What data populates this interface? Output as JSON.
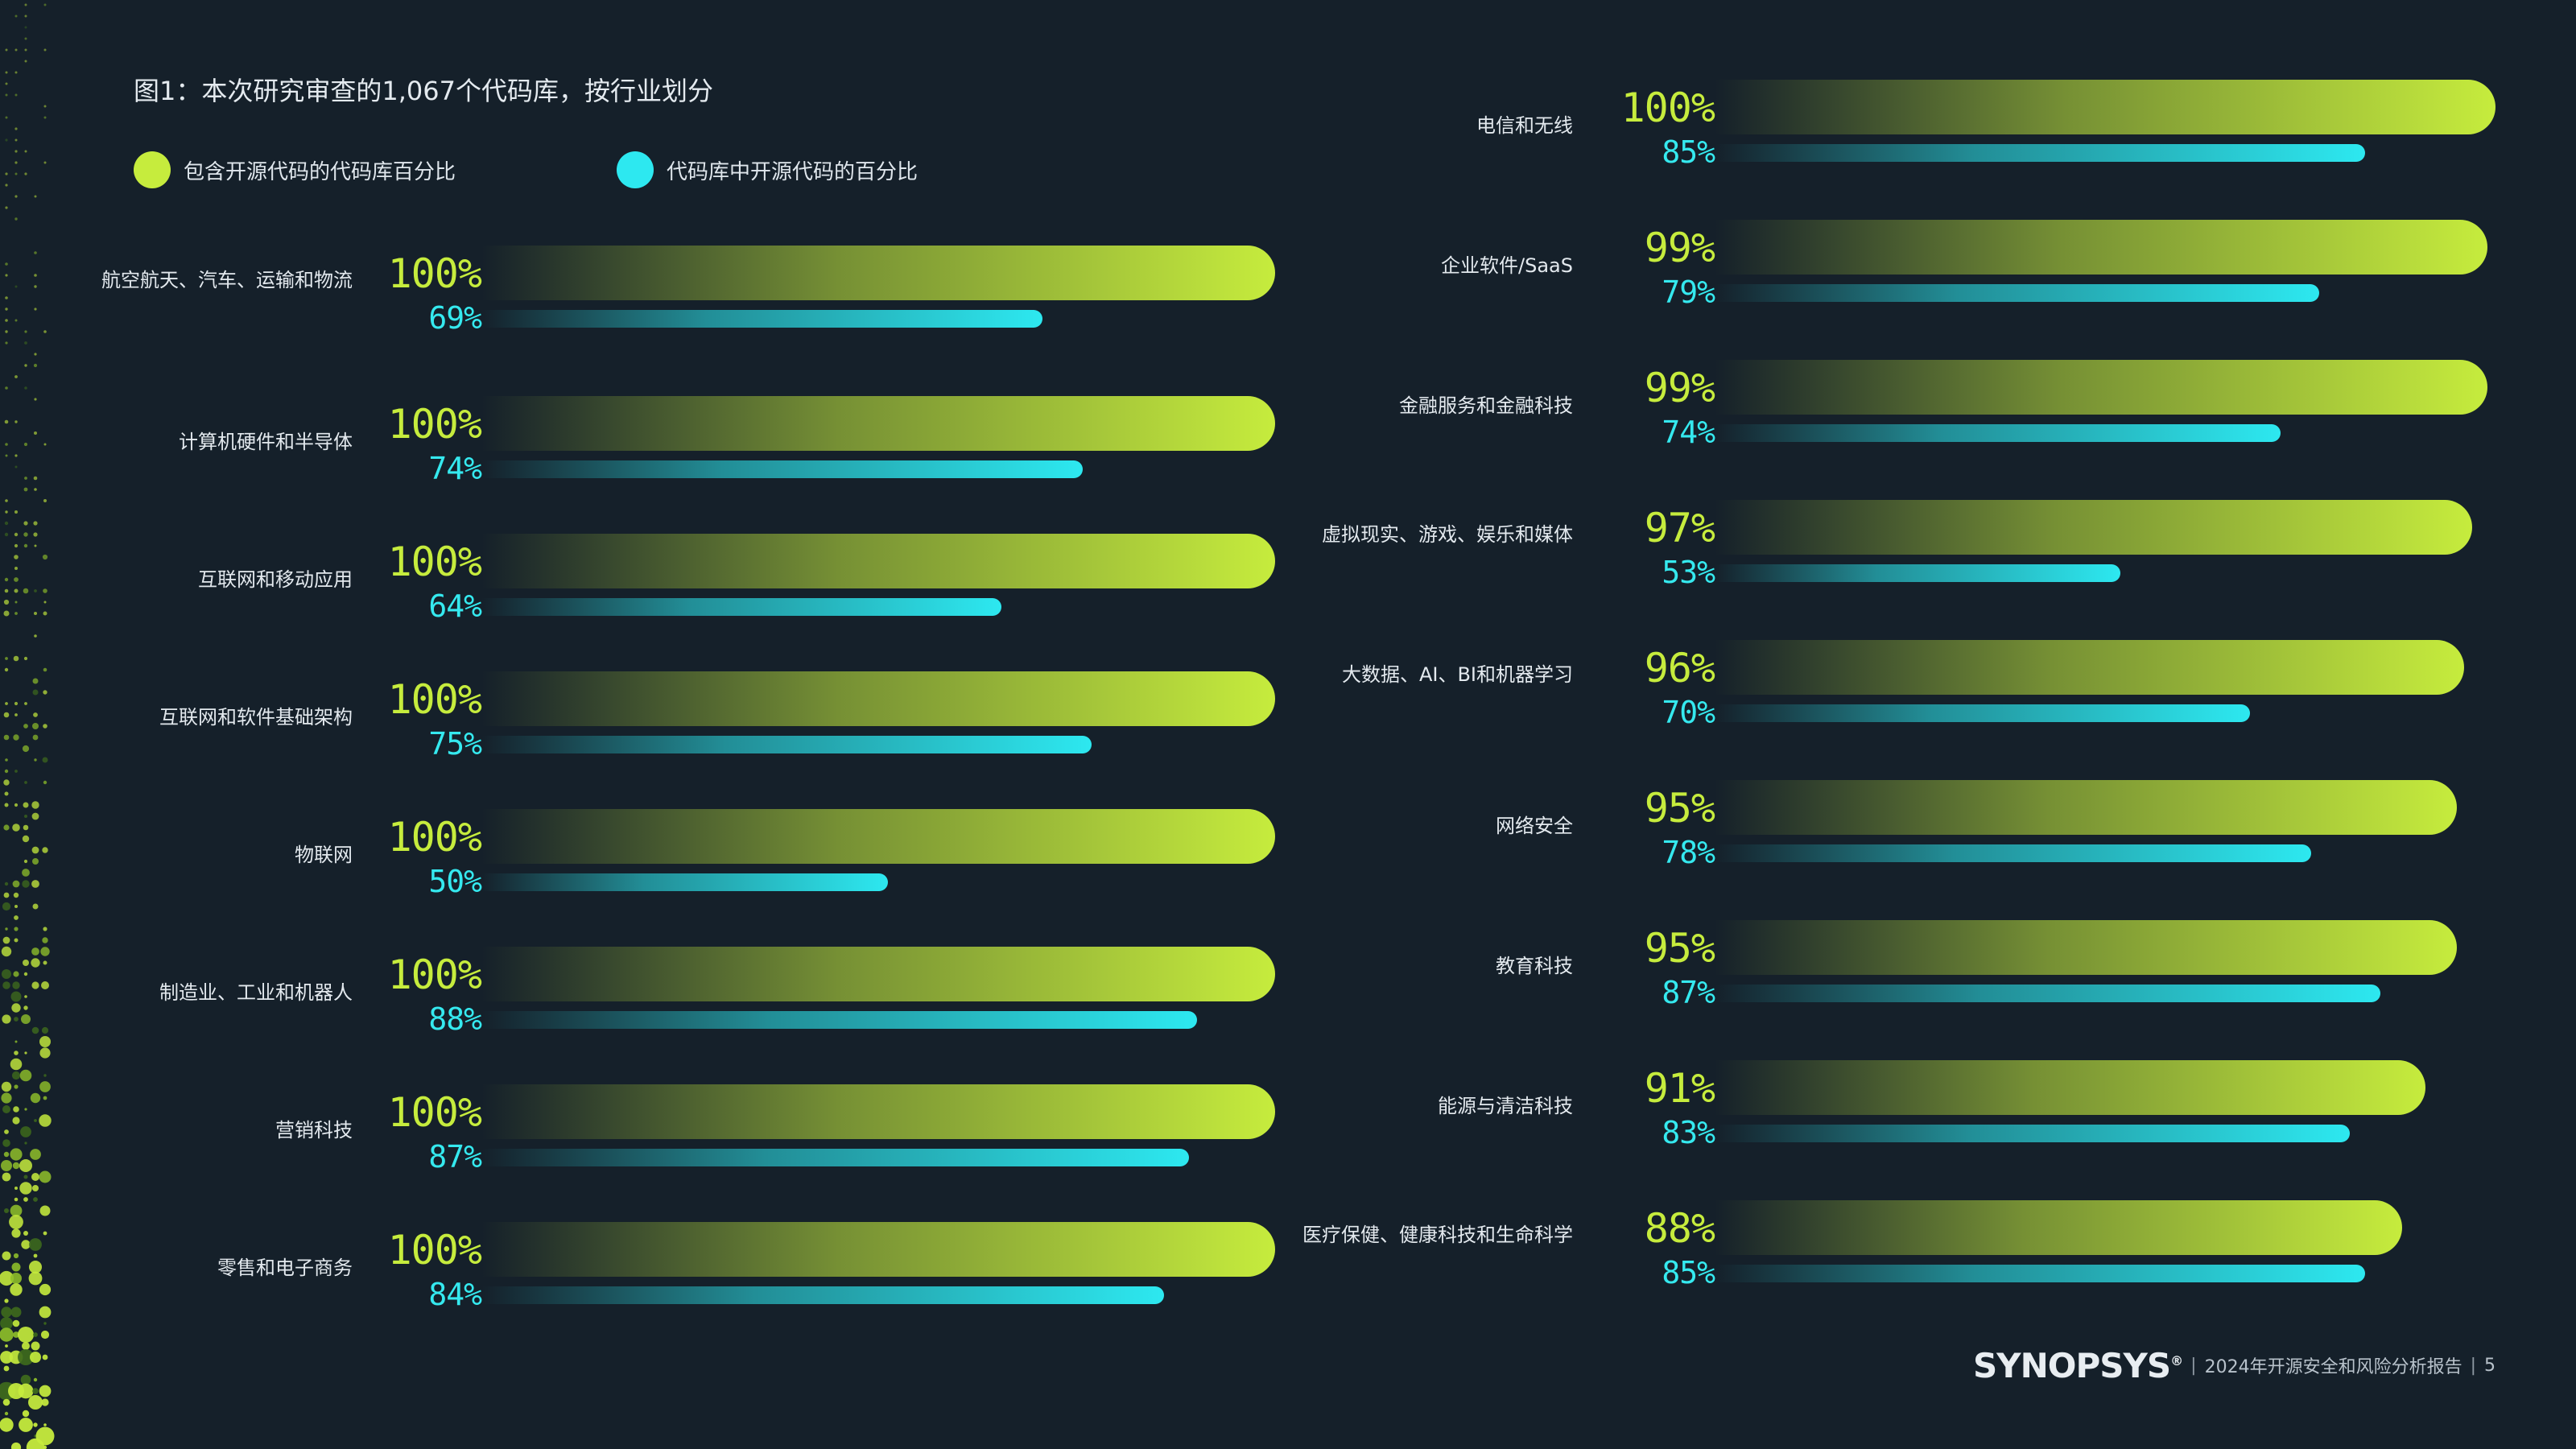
{
  "title": "图1：本次研究审查的1,067个代码库，按行业划分",
  "legend": [
    {
      "label": "包含开源代码的代码库百分比",
      "color": "#c6ec3d"
    },
    {
      "label": "代码库中开源代码的百分比",
      "color": "#2de8f0"
    }
  ],
  "colors": {
    "lime": "#c6ec3d",
    "cyan": "#2de8f0",
    "background": "#15202a"
  },
  "chart_data": {
    "type": "bar",
    "orientation": "horizontal",
    "series": [
      {
        "name": "包含开源代码的代码库百分比",
        "color": "#c6ec3d"
      },
      {
        "name": "代码库中开源代码的百分比",
        "color": "#2de8f0"
      }
    ],
    "value_unit": "%",
    "ylim": [
      0,
      100
    ],
    "left_column": [
      {
        "category": "航空航天、汽车、运输和物流",
        "values": [
          100,
          69
        ],
        "labels": [
          "100%",
          "69%"
        ]
      },
      {
        "category": "计算机硬件和半导体",
        "values": [
          100,
          74
        ],
        "labels": [
          "100%",
          "74%"
        ]
      },
      {
        "category": "互联网和移动应用",
        "values": [
          100,
          64
        ],
        "labels": [
          "100%",
          "64%"
        ]
      },
      {
        "category": "互联网和软件基础架构",
        "values": [
          100,
          75
        ],
        "labels": [
          "100%",
          "75%"
        ]
      },
      {
        "category": "物联网",
        "values": [
          100,
          50
        ],
        "labels": [
          "100%",
          "50%"
        ]
      },
      {
        "category": "制造业、工业和机器人",
        "values": [
          100,
          88
        ],
        "labels": [
          "100%",
          "88%"
        ]
      },
      {
        "category": "营销科技",
        "values": [
          100,
          87
        ],
        "labels": [
          "100%",
          "87%"
        ]
      },
      {
        "category": "零售和电子商务",
        "values": [
          100,
          84
        ],
        "labels": [
          "100%",
          "84%"
        ]
      }
    ],
    "right_column": [
      {
        "category": "电信和无线",
        "values": [
          100,
          85
        ],
        "labels": [
          "100%",
          "85%"
        ]
      },
      {
        "category": "企业软件/SaaS",
        "values": [
          99,
          79
        ],
        "labels": [
          "99%",
          "79%"
        ]
      },
      {
        "category": "金融服务和金融科技",
        "values": [
          99,
          74
        ],
        "labels": [
          "99%",
          "74%"
        ]
      },
      {
        "category": "虚拟现实、游戏、娱乐和媒体",
        "values": [
          97,
          53
        ],
        "labels": [
          "97%",
          "53%"
        ]
      },
      {
        "category": "大数据、AI、BI和机器学习",
        "values": [
          96,
          70
        ],
        "labels": [
          "96%",
          "70%"
        ]
      },
      {
        "category": "网络安全",
        "values": [
          95,
          78
        ],
        "labels": [
          "95%",
          "78%"
        ]
      },
      {
        "category": "教育科技",
        "values": [
          95,
          87
        ],
        "labels": [
          "95%",
          "87%"
        ]
      },
      {
        "category": "能源与清洁科技",
        "values": [
          91,
          83
        ],
        "labels": [
          "91%",
          "83%"
        ]
      },
      {
        "category": "医疗保健、健康科技和生命科学",
        "values": [
          88,
          85
        ],
        "labels": [
          "88%",
          "85%"
        ]
      }
    ]
  },
  "footer": {
    "logo": "SYNOPSYS",
    "logo_mark": "®",
    "separator": "|",
    "report": "2024年开源安全和风险分析报告",
    "page": "5"
  }
}
